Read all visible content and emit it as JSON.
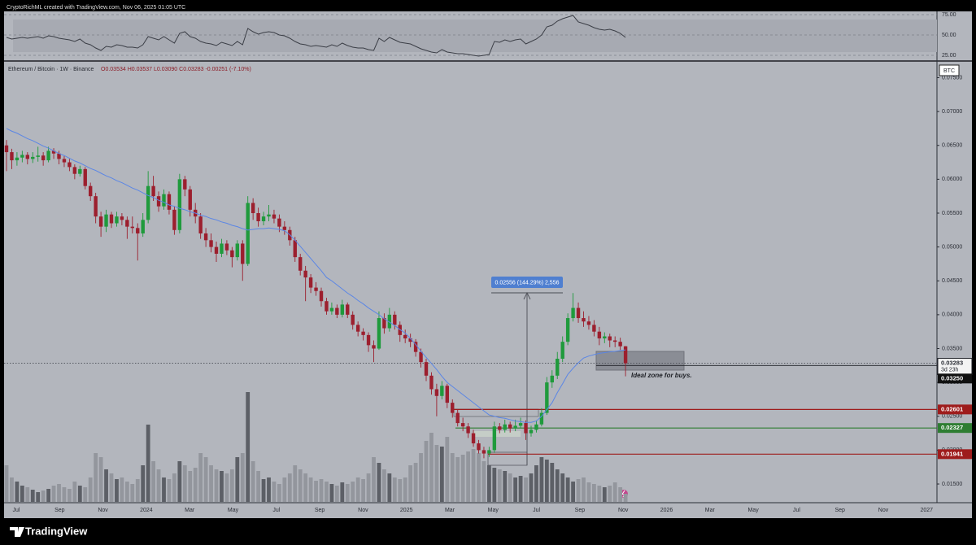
{
  "header": {
    "credit": "CryptoRichML created with TradingView.com, Nov 06, 2025 01:05 UTC"
  },
  "chart_data": {
    "type": "candlestick",
    "symbol_line": "Ethereum / Bitcoin · 1W · Binance",
    "ohlc_line": "O0.03534 H0.03537 L0.03090 C0.03283 -0.00251 (-7.10%)",
    "currency": "BTC",
    "x_labels": [
      "Jul",
      "Sep",
      "Nov",
      "2024",
      "Mar",
      "May",
      "Jul",
      "Sep",
      "Nov",
      "2025",
      "Mar",
      "May",
      "Jul",
      "Sep",
      "Nov",
      "2026",
      "Mar",
      "May",
      "Jul",
      "Sep",
      "Nov",
      "2027"
    ],
    "up_color": "#1f9a3c",
    "down_color": "#9c1f2e",
    "ylim": [
      0.01236,
      0.0771
    ],
    "yticks": [
      {
        "value": 0.015,
        "label": "0.01500"
      },
      {
        "value": 0.02,
        "label": "0.02000"
      },
      {
        "value": 0.025,
        "label": "0.02500"
      },
      {
        "value": 0.03,
        "label": "0.03000"
      },
      {
        "value": 0.035,
        "label": "0.03500"
      },
      {
        "value": 0.04,
        "label": "0.04000"
      },
      {
        "value": 0.045,
        "label": "0.04500"
      },
      {
        "value": 0.05,
        "label": "0.05000"
      },
      {
        "value": 0.055,
        "label": "0.05500"
      },
      {
        "value": 0.06,
        "label": "0.06000"
      },
      {
        "value": 0.065,
        "label": "0.06500"
      },
      {
        "value": 0.07,
        "label": "0.07000"
      },
      {
        "value": 0.075,
        "label": "0.07500"
      }
    ],
    "grid": false,
    "ohlc": [
      [
        0.065,
        0.0658,
        0.0612,
        0.064
      ],
      [
        0.064,
        0.0645,
        0.0615,
        0.0628
      ],
      [
        0.0628,
        0.064,
        0.062,
        0.0632
      ],
      [
        0.0632,
        0.0642,
        0.0625,
        0.0636
      ],
      [
        0.0636,
        0.064,
        0.0622,
        0.063
      ],
      [
        0.063,
        0.064,
        0.0624,
        0.0633
      ],
      [
        0.0633,
        0.0648,
        0.0626,
        0.0635
      ],
      [
        0.0635,
        0.064,
        0.062,
        0.0628
      ],
      [
        0.0628,
        0.0648,
        0.0625,
        0.0642
      ],
      [
        0.0642,
        0.0646,
        0.063,
        0.0638
      ],
      [
        0.0638,
        0.0642,
        0.0622,
        0.063
      ],
      [
        0.063,
        0.0634,
        0.0618,
        0.0625
      ],
      [
        0.0625,
        0.063,
        0.0612,
        0.0618
      ],
      [
        0.0618,
        0.0622,
        0.06,
        0.0608
      ],
      [
        0.0608,
        0.062,
        0.0604,
        0.0615
      ],
      [
        0.0615,
        0.0618,
        0.0585,
        0.059
      ],
      [
        0.059,
        0.0595,
        0.0568,
        0.0575
      ],
      [
        0.0575,
        0.058,
        0.0535,
        0.0545
      ],
      [
        0.0545,
        0.0552,
        0.0515,
        0.053
      ],
      [
        0.053,
        0.0555,
        0.0522,
        0.0548
      ],
      [
        0.0548,
        0.0552,
        0.0528,
        0.0535
      ],
      [
        0.0535,
        0.0552,
        0.053,
        0.0545
      ],
      [
        0.0545,
        0.055,
        0.0532,
        0.054
      ],
      [
        0.054,
        0.0545,
        0.0512,
        0.053
      ],
      [
        0.053,
        0.0545,
        0.052,
        0.0528
      ],
      [
        0.0528,
        0.0535,
        0.048,
        0.052
      ],
      [
        0.052,
        0.055,
        0.0515,
        0.054
      ],
      [
        0.054,
        0.0612,
        0.0535,
        0.059
      ],
      [
        0.059,
        0.0605,
        0.0568,
        0.0575
      ],
      [
        0.0575,
        0.0582,
        0.0552,
        0.056
      ],
      [
        0.056,
        0.0585,
        0.0555,
        0.0578
      ],
      [
        0.0578,
        0.0582,
        0.0548,
        0.0555
      ],
      [
        0.0555,
        0.056,
        0.0518,
        0.0525
      ],
      [
        0.0525,
        0.0608,
        0.052,
        0.06
      ],
      [
        0.06,
        0.0605,
        0.0575,
        0.0585
      ],
      [
        0.0585,
        0.059,
        0.0545,
        0.0555
      ],
      [
        0.0555,
        0.0565,
        0.0535,
        0.0545
      ],
      [
        0.0545,
        0.055,
        0.0512,
        0.052
      ],
      [
        0.052,
        0.0528,
        0.05,
        0.051
      ],
      [
        0.051,
        0.052,
        0.0492,
        0.05
      ],
      [
        0.05,
        0.0508,
        0.0478,
        0.049
      ],
      [
        0.049,
        0.0512,
        0.0485,
        0.0505
      ],
      [
        0.0505,
        0.051,
        0.0488,
        0.0495
      ],
      [
        0.0495,
        0.05,
        0.047,
        0.0485
      ],
      [
        0.0485,
        0.051,
        0.048,
        0.0505
      ],
      [
        0.0505,
        0.051,
        0.045,
        0.0475
      ],
      [
        0.0475,
        0.0575,
        0.0472,
        0.0565
      ],
      [
        0.0565,
        0.0572,
        0.054,
        0.055
      ],
      [
        0.055,
        0.0558,
        0.053,
        0.0538
      ],
      [
        0.0538,
        0.0552,
        0.0532,
        0.0545
      ],
      [
        0.0545,
        0.0562,
        0.0538,
        0.0548
      ],
      [
        0.0548,
        0.0555,
        0.0535,
        0.0542
      ],
      [
        0.0542,
        0.0548,
        0.0522,
        0.053
      ],
      [
        0.053,
        0.0538,
        0.0518,
        0.0525
      ],
      [
        0.0525,
        0.053,
        0.0502,
        0.051
      ],
      [
        0.051,
        0.0515,
        0.0478,
        0.0485
      ],
      [
        0.0485,
        0.049,
        0.0458,
        0.0465
      ],
      [
        0.0465,
        0.0472,
        0.042,
        0.0455
      ],
      [
        0.0455,
        0.046,
        0.0432,
        0.044
      ],
      [
        0.044,
        0.0448,
        0.0428,
        0.0435
      ],
      [
        0.0435,
        0.044,
        0.0412,
        0.042
      ],
      [
        0.042,
        0.0425,
        0.04,
        0.0405
      ],
      [
        0.0405,
        0.0418,
        0.04,
        0.041
      ],
      [
        0.041,
        0.0415,
        0.0395,
        0.04
      ],
      [
        0.04,
        0.0422,
        0.0396,
        0.0415
      ],
      [
        0.0415,
        0.0418,
        0.0395,
        0.04
      ],
      [
        0.04,
        0.0405,
        0.0378,
        0.0385
      ],
      [
        0.0385,
        0.039,
        0.0368,
        0.0375
      ],
      [
        0.0375,
        0.038,
        0.0362,
        0.037
      ],
      [
        0.037,
        0.0374,
        0.0345,
        0.0355
      ],
      [
        0.0355,
        0.0362,
        0.033,
        0.035
      ],
      [
        0.035,
        0.0405,
        0.0348,
        0.0395
      ],
      [
        0.0395,
        0.0402,
        0.0372,
        0.038
      ],
      [
        0.038,
        0.041,
        0.0375,
        0.04
      ],
      [
        0.04,
        0.0405,
        0.0378,
        0.0385
      ],
      [
        0.0385,
        0.039,
        0.036,
        0.037
      ],
      [
        0.037,
        0.0378,
        0.0358,
        0.0365
      ],
      [
        0.0365,
        0.0372,
        0.0352,
        0.036
      ],
      [
        0.036,
        0.0364,
        0.0338,
        0.0345
      ],
      [
        0.0345,
        0.035,
        0.0322,
        0.033
      ],
      [
        0.033,
        0.0335,
        0.0302,
        0.031
      ],
      [
        0.031,
        0.0315,
        0.0282,
        0.029
      ],
      [
        0.029,
        0.0298,
        0.025,
        0.028
      ],
      [
        0.028,
        0.0302,
        0.0275,
        0.0295
      ],
      [
        0.0295,
        0.0298,
        0.0262,
        0.027
      ],
      [
        0.027,
        0.0275,
        0.0248,
        0.0255
      ],
      [
        0.0255,
        0.026,
        0.0235,
        0.024
      ],
      [
        0.024,
        0.0248,
        0.0228,
        0.0235
      ],
      [
        0.0235,
        0.024,
        0.0218,
        0.0225
      ],
      [
        0.0225,
        0.023,
        0.0205,
        0.021
      ],
      [
        0.021,
        0.0215,
        0.0195,
        0.02
      ],
      [
        0.02,
        0.0205,
        0.0188,
        0.0195
      ],
      [
        0.0195,
        0.0205,
        0.019,
        0.02
      ],
      [
        0.02,
        0.0242,
        0.0196,
        0.0235
      ],
      [
        0.0235,
        0.024,
        0.0225,
        0.023
      ],
      [
        0.023,
        0.0245,
        0.0226,
        0.0238
      ],
      [
        0.0238,
        0.0242,
        0.0226,
        0.0232
      ],
      [
        0.0232,
        0.0245,
        0.0228,
        0.0236
      ],
      [
        0.0236,
        0.0248,
        0.0232,
        0.024
      ],
      [
        0.024,
        0.0244,
        0.0215,
        0.0225
      ],
      [
        0.0225,
        0.0236,
        0.022,
        0.023
      ],
      [
        0.023,
        0.0244,
        0.0226,
        0.0238
      ],
      [
        0.0238,
        0.0262,
        0.0235,
        0.0255
      ],
      [
        0.0255,
        0.0308,
        0.0252,
        0.03
      ],
      [
        0.03,
        0.0318,
        0.0292,
        0.031
      ],
      [
        0.031,
        0.0345,
        0.0305,
        0.0335
      ],
      [
        0.0335,
        0.0368,
        0.033,
        0.036
      ],
      [
        0.036,
        0.0402,
        0.0355,
        0.0395
      ],
      [
        0.0395,
        0.0432,
        0.039,
        0.041
      ],
      [
        0.041,
        0.0418,
        0.0388,
        0.0395
      ],
      [
        0.0395,
        0.0405,
        0.0382,
        0.039
      ],
      [
        0.039,
        0.0398,
        0.0378,
        0.0385
      ],
      [
        0.0385,
        0.0392,
        0.0368,
        0.0375
      ],
      [
        0.0375,
        0.0382,
        0.0355,
        0.0365
      ],
      [
        0.0365,
        0.0374,
        0.0358,
        0.0368
      ],
      [
        0.0368,
        0.0372,
        0.0352,
        0.0362
      ],
      [
        0.0362,
        0.0368,
        0.0352,
        0.036
      ],
      [
        0.036,
        0.0366,
        0.0348,
        0.03534
      ],
      [
        0.03534,
        0.03537,
        0.0309,
        0.03283
      ]
    ],
    "moving_average": {
      "color": "#5b86e5",
      "values": [
        0.0675,
        0.0671,
        0.0668,
        0.0664,
        0.066,
        0.0657,
        0.0653,
        0.0649,
        0.0646,
        0.0642,
        0.0638,
        0.0635,
        0.0631,
        0.0627,
        0.0624,
        0.062,
        0.0616,
        0.0613,
        0.0609,
        0.0605,
        0.0602,
        0.0598,
        0.0595,
        0.0591,
        0.0587,
        0.0584,
        0.058,
        0.0576,
        0.0573,
        0.0569,
        0.0566,
        0.0562,
        0.056,
        0.0557,
        0.0555,
        0.0552,
        0.055,
        0.0547,
        0.0545,
        0.0542,
        0.054,
        0.0537,
        0.0535,
        0.0532,
        0.053,
        0.0527,
        0.0525,
        0.0526,
        0.0527,
        0.0527,
        0.0528,
        0.0527,
        0.0526,
        0.0524,
        0.0518,
        0.051,
        0.0501,
        0.0492,
        0.0483,
        0.0474,
        0.0465,
        0.0455,
        0.045,
        0.0444,
        0.0438,
        0.0432,
        0.0427,
        0.0421,
        0.0416,
        0.041,
        0.0405,
        0.04,
        0.0394,
        0.0389,
        0.0384,
        0.0378,
        0.0373,
        0.0365,
        0.0356,
        0.0346,
        0.0337,
        0.0328,
        0.0319,
        0.0309,
        0.03,
        0.0294,
        0.0288,
        0.0282,
        0.0276,
        0.027,
        0.0264,
        0.0258,
        0.0252,
        0.025,
        0.0248,
        0.0247,
        0.0245,
        0.0243,
        0.0242,
        0.0241,
        0.0241,
        0.0243,
        0.025,
        0.026,
        0.027,
        0.0285,
        0.0298,
        0.0312,
        0.0321,
        0.0329,
        0.0336,
        0.0339,
        0.0341,
        0.0343,
        0.0344,
        0.0345,
        0.0346,
        0.0347,
        0.0348
      ]
    },
    "volume": {
      "up_color": "#5c5f66",
      "down_color": "#93969d",
      "values": [
        45,
        30,
        25,
        20,
        18,
        15,
        12,
        14,
        16,
        20,
        22,
        18,
        16,
        25,
        20,
        18,
        30,
        60,
        55,
        40,
        35,
        28,
        30,
        25,
        22,
        28,
        45,
        95,
        50,
        40,
        30,
        28,
        35,
        50,
        45,
        38,
        42,
        60,
        55,
        45,
        40,
        38,
        35,
        40,
        55,
        60,
        135,
        50,
        38,
        28,
        30,
        25,
        22,
        30,
        35,
        45,
        40,
        35,
        30,
        26,
        28,
        25,
        22,
        20,
        24,
        22,
        25,
        30,
        28,
        35,
        55,
        48,
        40,
        35,
        30,
        28,
        30,
        45,
        48,
        60,
        75,
        85,
        70,
        68,
        80,
        60,
        55,
        58,
        62,
        65,
        60,
        50,
        45,
        42,
        40,
        38,
        35,
        30,
        32,
        30,
        35,
        45,
        55,
        52,
        48,
        40,
        35,
        30,
        25,
        28,
        30,
        24,
        22,
        20,
        18,
        20,
        24,
        18,
        10
      ]
    },
    "levels": [
      {
        "value": 0.02601,
        "color": "#9e1c1c"
      },
      {
        "value": 0.02327,
        "color": "#2e7d32"
      },
      {
        "value": 0.01941,
        "color": "#9e1c1c"
      }
    ],
    "current_price": 0.03283,
    "countdown": "3d 23h",
    "crosshair_price": {
      "value": 0.0325,
      "label": "0.03250"
    },
    "annotations": {
      "measure": "0.02556 (144.29%) 2,556",
      "zone": "Ideal zone for buys."
    },
    "rsi": {
      "color": "#3b3e46",
      "ylim": [
        18,
        80
      ],
      "yticks": [
        {
          "value": 25,
          "label": "25.00"
        },
        {
          "value": 50,
          "label": "50.00"
        },
        {
          "value": 75,
          "label": "75.00"
        }
      ],
      "values": [
        47,
        45,
        46,
        47,
        46,
        47,
        48,
        46,
        49,
        48,
        46,
        45,
        44,
        42,
        45,
        40,
        38,
        34,
        31,
        36,
        35,
        38,
        37,
        35,
        35,
        34,
        38,
        48,
        46,
        44,
        48,
        44,
        40,
        52,
        54,
        48,
        46,
        42,
        40,
        39,
        37,
        41,
        39,
        37,
        42,
        38,
        58,
        54,
        51,
        53,
        54,
        53,
        50,
        49,
        46,
        42,
        39,
        38,
        36,
        37,
        36,
        35,
        38,
        36,
        40,
        37,
        35,
        34,
        34,
        32,
        31,
        46,
        42,
        47,
        44,
        41,
        40,
        39,
        36,
        33,
        31,
        29,
        28,
        32,
        29,
        28,
        27,
        27,
        26,
        25,
        24,
        25,
        26,
        42,
        41,
        44,
        42,
        44,
        45,
        39,
        42,
        45,
        50,
        60,
        62,
        67,
        70,
        72,
        74,
        66,
        64,
        62,
        59,
        57,
        56,
        57,
        55,
        52,
        47
      ]
    }
  },
  "footer": {
    "brand": "TradingView"
  }
}
